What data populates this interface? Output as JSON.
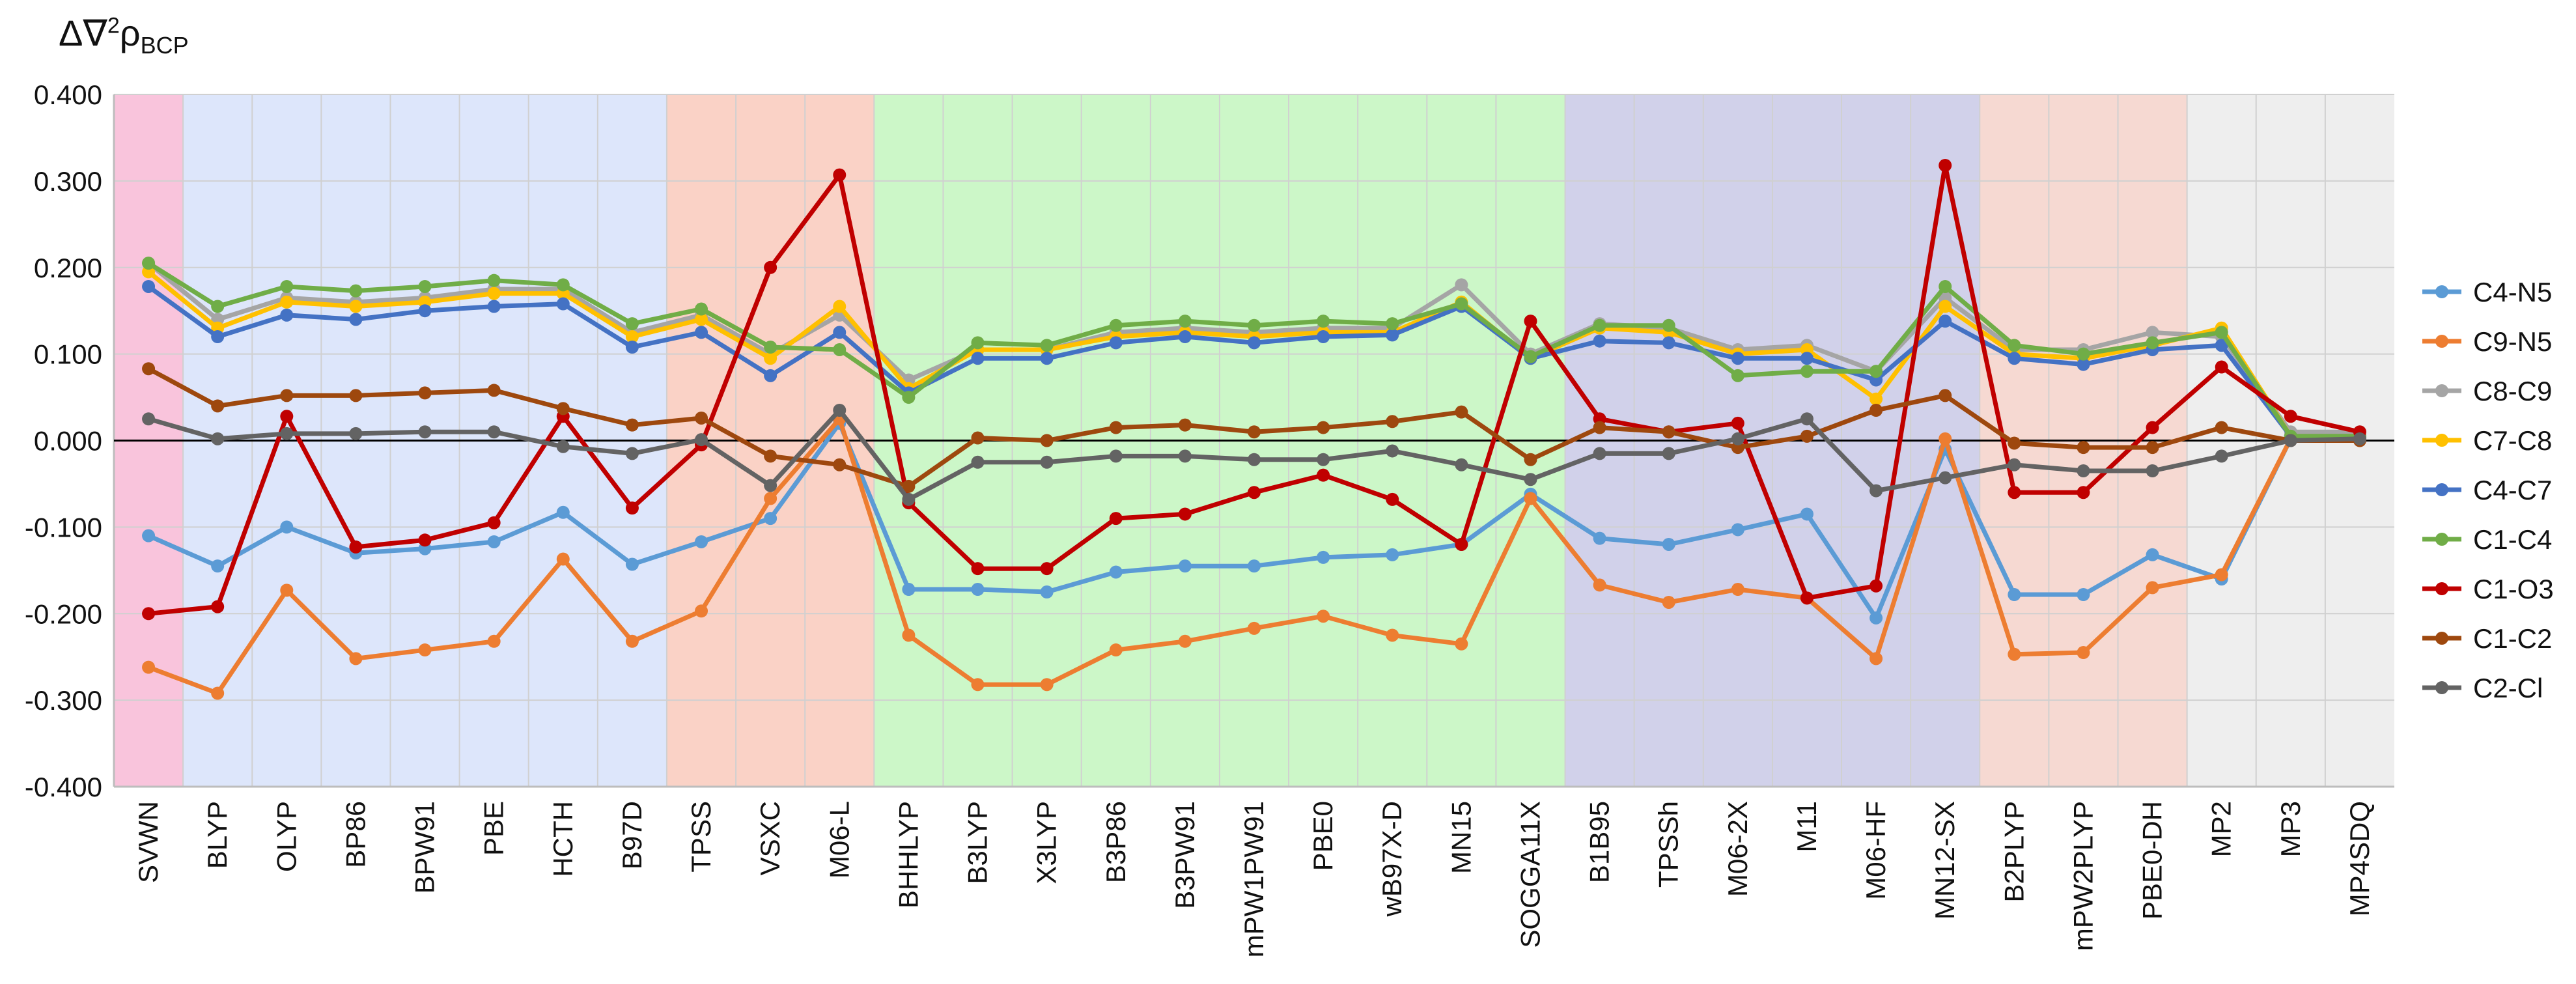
{
  "chart_data": {
    "type": "line",
    "y_axis_title": {
      "main": "Δ∇",
      "sup": "2",
      "rho": "ρ",
      "sub": "BCP"
    },
    "ylim": [
      -0.4,
      0.4
    ],
    "yticks": [
      "0.400",
      "0.300",
      "0.200",
      "0.100",
      "0.000",
      "-0.100",
      "-0.200",
      "-0.300",
      "-0.400"
    ],
    "categories": [
      "SVWN",
      "BLYP",
      "OLYP",
      "BP86",
      "BPW91",
      "PBE",
      "HCTH",
      "B97D",
      "TPSS",
      "VSXC",
      "M06-L",
      "BHHLYP",
      "B3LYP",
      "X3LYP",
      "B3P86",
      "B3PW91",
      "mPW1PW91",
      "PBE0",
      "wB97X-D",
      "MN15",
      "SOGGA11X",
      "B1B95",
      "TPSSh",
      "M06-2X",
      "M11",
      "M06-HF",
      "MN12-SX",
      "B2PLYP",
      "mPW2PLYP",
      "PBE0-DH",
      "MP2",
      "MP3",
      "MP4SDQ"
    ],
    "grid": true,
    "legend_position": "right",
    "bands": [
      {
        "from": 0,
        "to": 0,
        "color": "#f9c4dc"
      },
      {
        "from": 1,
        "to": 7,
        "color": "#dde6fb"
      },
      {
        "from": 8,
        "to": 10,
        "color": "#fad2c6"
      },
      {
        "from": 11,
        "to": 20,
        "color": "#ccf7c8"
      },
      {
        "from": 21,
        "to": 26,
        "color": "#d1d1ea"
      },
      {
        "from": 27,
        "to": 29,
        "color": "#f6d9d2"
      },
      {
        "from": 30,
        "to": 32,
        "color": "#eeeeee"
      }
    ],
    "series": [
      {
        "name": "C4-N5",
        "color": "#5b9bd5",
        "values": [
          -0.11,
          -0.145,
          -0.1,
          -0.13,
          -0.125,
          -0.117,
          -0.083,
          -0.143,
          -0.117,
          -0.09,
          0.02,
          -0.172,
          -0.172,
          -0.175,
          -0.152,
          -0.145,
          -0.145,
          -0.135,
          -0.132,
          -0.12,
          -0.062,
          -0.113,
          -0.12,
          -0.103,
          -0.085,
          -0.205,
          -0.01,
          -0.178,
          -0.178,
          -0.132,
          -0.16,
          0.002,
          0.003
        ]
      },
      {
        "name": "C9-N5",
        "color": "#ed7d31",
        "values": [
          -0.262,
          -0.292,
          -0.173,
          -0.252,
          -0.242,
          -0.232,
          -0.137,
          -0.232,
          -0.197,
          -0.067,
          0.025,
          -0.225,
          -0.282,
          -0.282,
          -0.242,
          -0.232,
          -0.217,
          -0.203,
          -0.225,
          -0.235,
          -0.067,
          -0.167,
          -0.187,
          -0.172,
          -0.182,
          -0.252,
          0.002,
          -0.247,
          -0.245,
          -0.17,
          -0.155,
          0.002,
          0.003
        ]
      },
      {
        "name": "C8-C9",
        "color": "#a5a5a5",
        "values": [
          0.205,
          0.14,
          0.165,
          0.16,
          0.165,
          0.175,
          0.175,
          0.125,
          0.145,
          0.1,
          0.145,
          0.07,
          0.105,
          0.105,
          0.125,
          0.13,
          0.125,
          0.13,
          0.13,
          0.18,
          0.1,
          0.135,
          0.13,
          0.105,
          0.11,
          0.08,
          0.165,
          0.105,
          0.105,
          0.125,
          0.12,
          0.01,
          0.01
        ]
      },
      {
        "name": "C7-C8",
        "color": "#ffc000",
        "values": [
          0.195,
          0.13,
          0.16,
          0.155,
          0.16,
          0.17,
          0.17,
          0.12,
          0.14,
          0.095,
          0.155,
          0.06,
          0.105,
          0.105,
          0.12,
          0.125,
          0.12,
          0.125,
          0.125,
          0.16,
          0.095,
          0.13,
          0.125,
          0.1,
          0.105,
          0.048,
          0.155,
          0.1,
          0.095,
          0.11,
          0.13,
          0.005,
          0.005
        ]
      },
      {
        "name": "C4-C7",
        "color": "#4472c4",
        "values": [
          0.178,
          0.12,
          0.145,
          0.14,
          0.15,
          0.155,
          0.158,
          0.108,
          0.125,
          0.075,
          0.125,
          0.055,
          0.095,
          0.095,
          0.113,
          0.12,
          0.113,
          0.12,
          0.122,
          0.155,
          0.095,
          0.115,
          0.113,
          0.095,
          0.095,
          0.07,
          0.138,
          0.095,
          0.088,
          0.105,
          0.11,
          0.005,
          0.005
        ]
      },
      {
        "name": "C1-C4",
        "color": "#70ad47",
        "values": [
          0.205,
          0.155,
          0.178,
          0.173,
          0.178,
          0.185,
          0.18,
          0.135,
          0.152,
          0.108,
          0.105,
          0.05,
          0.113,
          0.11,
          0.133,
          0.138,
          0.133,
          0.138,
          0.135,
          0.158,
          0.097,
          0.133,
          0.133,
          0.075,
          0.08,
          0.08,
          0.178,
          0.11,
          0.1,
          0.113,
          0.125,
          0.005,
          0.005
        ]
      },
      {
        "name": "C1-O3",
        "color": "#c00000",
        "values": [
          -0.2,
          -0.192,
          0.028,
          -0.123,
          -0.115,
          -0.095,
          0.028,
          -0.078,
          -0.005,
          0.2,
          0.307,
          -0.072,
          -0.148,
          -0.148,
          -0.09,
          -0.085,
          -0.06,
          -0.04,
          -0.068,
          -0.12,
          0.138,
          0.025,
          0.01,
          0.02,
          -0.182,
          -0.168,
          0.318,
          -0.06,
          -0.06,
          0.015,
          0.085,
          0.028,
          0.01
        ]
      },
      {
        "name": "C1-C2",
        "color": "#9e480e",
        "values": [
          0.083,
          0.04,
          0.052,
          0.052,
          0.055,
          0.058,
          0.037,
          0.018,
          0.026,
          -0.018,
          -0.028,
          -0.053,
          0.003,
          0.0,
          0.015,
          0.018,
          0.01,
          0.015,
          0.022,
          0.033,
          -0.022,
          0.015,
          0.01,
          -0.008,
          0.005,
          0.035,
          0.052,
          -0.003,
          -0.008,
          -0.008,
          0.015,
          0.0,
          0.0
        ]
      },
      {
        "name": "C2-Cl",
        "color": "#636363",
        "values": [
          0.025,
          0.002,
          0.008,
          0.008,
          0.01,
          0.01,
          -0.007,
          -0.015,
          0.001,
          -0.052,
          0.035,
          -0.068,
          -0.025,
          -0.025,
          -0.018,
          -0.018,
          -0.022,
          -0.022,
          -0.012,
          -0.028,
          -0.045,
          -0.015,
          -0.015,
          0.002,
          0.025,
          -0.058,
          -0.043,
          -0.028,
          -0.035,
          -0.035,
          -0.018,
          0.0,
          0.002
        ]
      }
    ]
  }
}
